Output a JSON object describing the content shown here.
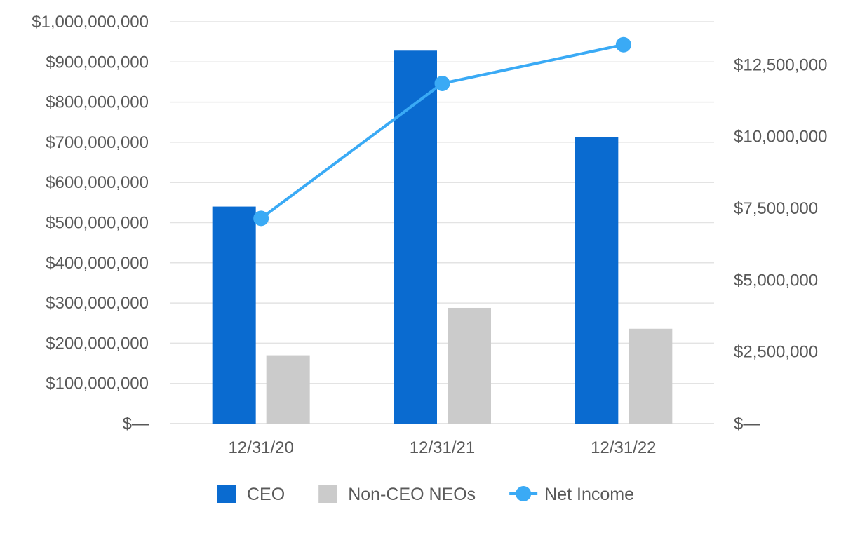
{
  "chart_data": {
    "type": "bar",
    "categories": [
      "12/31/20",
      "12/31/21",
      "12/31/22"
    ],
    "series": [
      {
        "name": "CEO",
        "type": "bar",
        "axis": "left",
        "color": "#0A6BD0",
        "values": [
          540000000,
          928000000,
          713000000
        ]
      },
      {
        "name": "Non-CEO NEOs",
        "type": "bar",
        "axis": "left",
        "color": "#CBCBCB",
        "values": [
          170000000,
          288000000,
          236000000
        ]
      },
      {
        "name": "Net Income",
        "type": "line",
        "axis": "right",
        "color": "#3AAAF5",
        "values": [
          7150000,
          11850000,
          13200000
        ]
      }
    ],
    "y_left": {
      "min": 0,
      "max": 1000000000,
      "ticks": [
        0,
        100000000,
        200000000,
        300000000,
        400000000,
        500000000,
        600000000,
        700000000,
        800000000,
        900000000,
        1000000000
      ],
      "tick_labels": [
        "$—",
        "$100,000,000",
        "$200,000,000",
        "$300,000,000",
        "$400,000,000",
        "$500,000,000",
        "$600,000,000",
        "$700,000,000",
        "$800,000,000",
        "$900,000,000",
        "$1,000,000,000"
      ]
    },
    "y_right": {
      "min": 0,
      "max": 14000000,
      "ticks": [
        0,
        2500000,
        5000000,
        7500000,
        10000000,
        12500000
      ],
      "tick_labels": [
        "$—",
        "$2,500,000",
        "$5,000,000",
        "$7,500,000",
        "$10,000,000",
        "$12,500,000"
      ]
    },
    "grid": true,
    "legend_position": "bottom",
    "gridline_color": "#E3E3E3",
    "text_color": "#595959"
  }
}
